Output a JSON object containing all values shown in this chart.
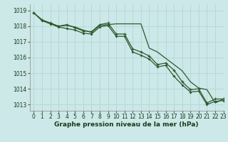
{
  "title": "Graphe pression niveau de la mer (hPa)",
  "background_color": "#cce8e8",
  "grid_color": "#b8d8d8",
  "line_color": "#2d5a2d",
  "xlim": [
    -0.5,
    23
  ],
  "ylim": [
    1012.6,
    1019.4
  ],
  "yticks": [
    1013,
    1014,
    1015,
    1016,
    1017,
    1018,
    1019
  ],
  "xticks": [
    0,
    1,
    2,
    3,
    4,
    5,
    6,
    7,
    8,
    9,
    10,
    11,
    12,
    13,
    14,
    15,
    16,
    17,
    18,
    19,
    20,
    21,
    22,
    23
  ],
  "s1": [
    1018.85,
    1018.4,
    1018.2,
    1018.0,
    1018.05,
    1017.95,
    1017.75,
    1017.6,
    1018.05,
    1018.1,
    1018.15,
    1018.15,
    1018.15,
    1018.15,
    1016.6,
    1016.35,
    1015.95,
    1015.55,
    1015.15,
    1014.45,
    1014.05,
    1013.95,
    1013.1,
    1013.35
  ],
  "s2": [
    1018.85,
    1018.4,
    1018.2,
    1018.0,
    1018.1,
    1017.9,
    1017.7,
    1017.65,
    1018.1,
    1018.2,
    1017.5,
    1017.5,
    1016.55,
    1016.35,
    1016.1,
    1015.55,
    1015.65,
    1015.2,
    1014.45,
    1013.95,
    1014.0,
    1013.1,
    1013.35,
    1013.35
  ],
  "s3": [
    1018.85,
    1018.35,
    1018.15,
    1017.95,
    1017.85,
    1017.75,
    1017.55,
    1017.5,
    1017.95,
    1018.05,
    1017.35,
    1017.35,
    1016.35,
    1016.15,
    1015.9,
    1015.4,
    1015.5,
    1014.8,
    1014.25,
    1013.8,
    1013.85,
    1013.0,
    1013.2,
    1013.25
  ]
}
